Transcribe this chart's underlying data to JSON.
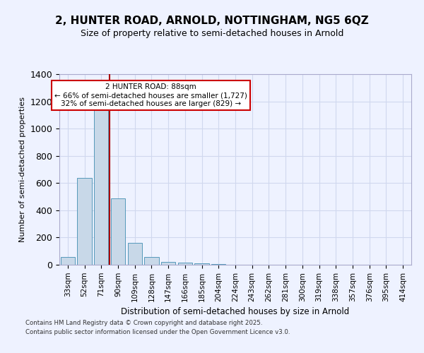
{
  "title_line1": "2, HUNTER ROAD, ARNOLD, NOTTINGHAM, NG5 6QZ",
  "title_line2": "Size of property relative to semi-detached houses in Arnold",
  "xlabel": "Distribution of semi-detached houses by size in Arnold",
  "ylabel": "Number of semi-detached properties",
  "categories": [
    "33sqm",
    "52sqm",
    "71sqm",
    "90sqm",
    "109sqm",
    "128sqm",
    "147sqm",
    "166sqm",
    "185sqm",
    "204sqm",
    "224sqm",
    "243sqm",
    "262sqm",
    "281sqm",
    "300sqm",
    "319sqm",
    "338sqm",
    "357sqm",
    "376sqm",
    "395sqm",
    "414sqm"
  ],
  "values": [
    55,
    640,
    1165,
    490,
    160,
    55,
    20,
    13,
    8,
    5,
    0,
    0,
    0,
    0,
    0,
    0,
    0,
    0,
    0,
    0,
    0
  ],
  "bar_color": "#c8d8e8",
  "bar_edge_color": "#5599bb",
  "grid_color": "#d0d8ee",
  "vline_x_index": 2.5,
  "vline_color": "#aa0000",
  "annotation_text": "2 HUNTER ROAD: 88sqm\n← 66% of semi-detached houses are smaller (1,727)\n32% of semi-detached houses are larger (829) →",
  "annotation_box_color": "#ffffff",
  "annotation_box_edge": "#cc0000",
  "footer_line1": "Contains HM Land Registry data © Crown copyright and database right 2025.",
  "footer_line2": "Contains public sector information licensed under the Open Government Licence v3.0.",
  "ylim": [
    0,
    1400
  ],
  "background_color": "#eef2ff",
  "plot_background": "#eef2ff"
}
